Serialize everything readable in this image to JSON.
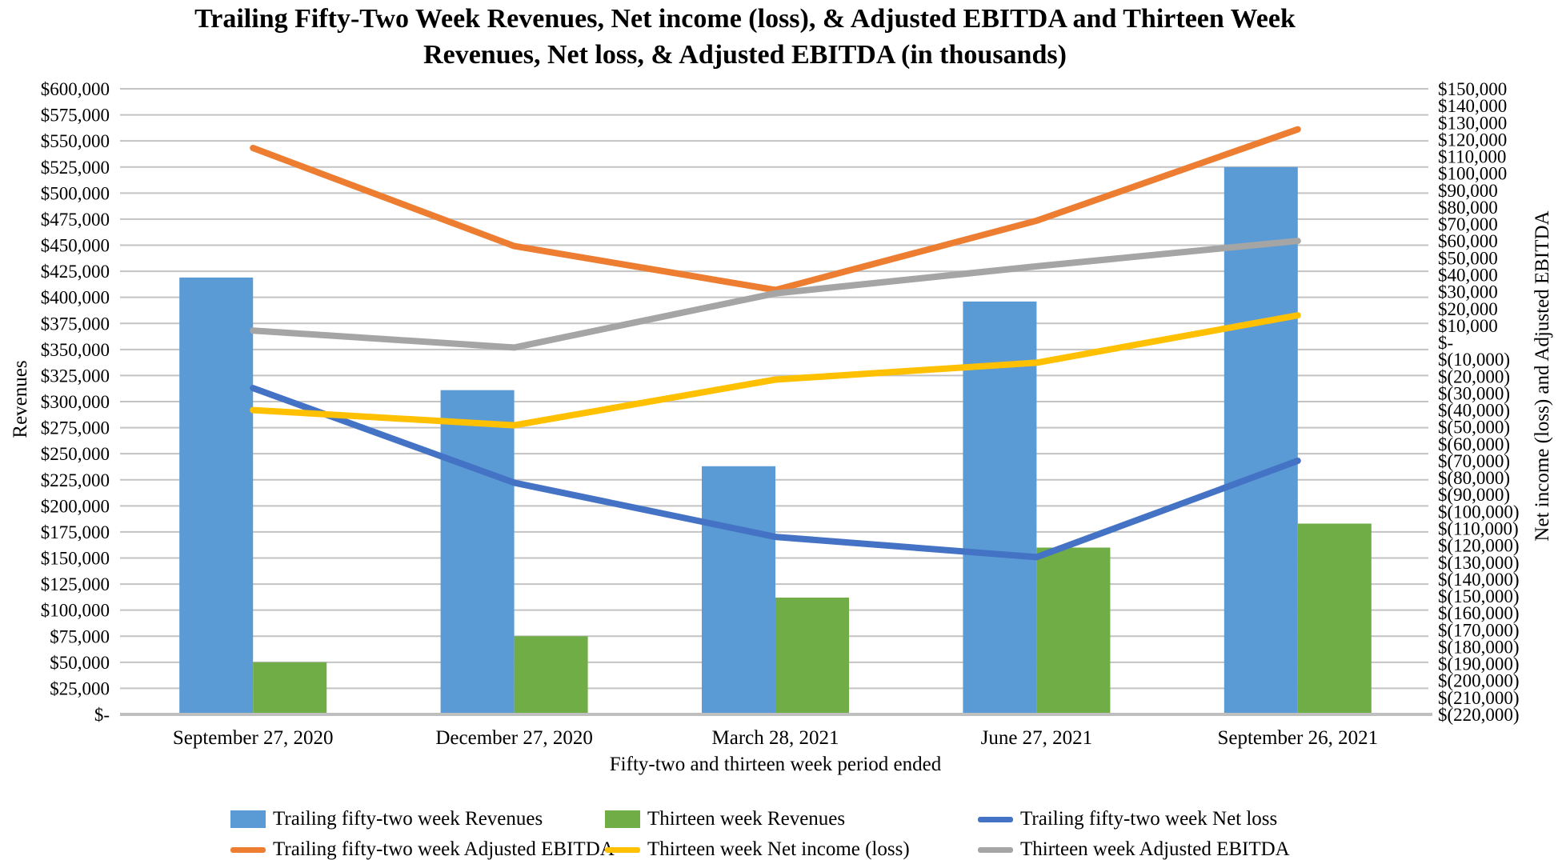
{
  "chart_data": {
    "type": "bar+line combo",
    "title_line1": "Trailing Fifty-Two Week Revenues, Net income (loss), & Adjusted EBITDA and Thirteen Week",
    "title_line2": "Revenues, Net loss, & Adjusted EBITDA (in thousands)",
    "grid": true,
    "legend_position": "bottom",
    "background_color": "#ffffff",
    "gridline_color": "#c3c3c3",
    "axis_line_color": "#bfbfbf",
    "categories": [
      "September 27, 2020",
      "December 27, 2020",
      "March 28, 2021",
      "June 27, 2021",
      "September 26, 2021"
    ],
    "axes": {
      "x": {
        "title": "Fifty-two and thirteen week period ended"
      },
      "left": {
        "title": "Revenues",
        "min": 0,
        "max": 600000,
        "step": 25000,
        "ticks": [
          "$600,000",
          "$575,000",
          "$550,000",
          "$525,000",
          "$500,000",
          "$475,000",
          "$450,000",
          "$425,000",
          "$400,000",
          "$375,000",
          "$350,000",
          "$325,000",
          "$300,000",
          "$275,000",
          "$250,000",
          "$225,000",
          "$200,000",
          "$175,000",
          "$150,000",
          "$125,000",
          "$100,000",
          "$75,000",
          "$50,000",
          "$25,000",
          "$-"
        ]
      },
      "right": {
        "title": "Net income (loss) and Adjusted EBITDA",
        "min": -220000,
        "max": 150000,
        "step": 10000,
        "ticks": [
          "$150,000",
          "$140,000",
          "$130,000",
          "$120,000",
          "$110,000",
          "$100,000",
          "$90,000",
          "$80,000",
          "$70,000",
          "$60,000",
          "$50,000",
          "$40,000",
          "$30,000",
          "$20,000",
          "$10,000",
          "$-",
          "$(10,000)",
          "$(20,000)",
          "$(30,000)",
          "$(40,000)",
          "$(50,000)",
          "$(60,000)",
          "$(70,000)",
          "$(80,000)",
          "$(90,000)",
          "$(100,000)",
          "$(110,000)",
          "$(120,000)",
          "$(130,000)",
          "$(140,000)",
          "$(150,000)",
          "$(160,000)",
          "$(170,000)",
          "$(180,000)",
          "$(190,000)",
          "$(200,000)",
          "$(210,000)",
          "$(220,000)"
        ]
      }
    },
    "series": [
      {
        "name": "Trailing fifty-two week Revenues",
        "type": "bar",
        "axis": "left",
        "color": "#5B9BD5",
        "values": [
          419000,
          311000,
          238000,
          396000,
          525000
        ]
      },
      {
        "name": "Thirteen week Revenues",
        "type": "bar",
        "axis": "left",
        "color": "#70AD47",
        "values": [
          50000,
          75000,
          112000,
          160000,
          183000
        ]
      },
      {
        "name": "Trailing fifty-two week Net loss",
        "type": "line",
        "axis": "right",
        "color": "#4472C4",
        "values": [
          -27000,
          -83000,
          -115000,
          -127000,
          -70000
        ]
      },
      {
        "name": "Trailing fifty-two week Adjusted EBITDA",
        "type": "line",
        "axis": "right",
        "color": "#ED7D31",
        "values": [
          115000,
          57000,
          31000,
          72000,
          126000
        ]
      },
      {
        "name": "Thirteen week Net income (loss)",
        "type": "line",
        "axis": "right",
        "color": "#FFC000",
        "values": [
          -40000,
          -49000,
          -22000,
          -12000,
          16000
        ]
      },
      {
        "name": "Thirteen week Adjusted EBITDA",
        "type": "line",
        "axis": "right",
        "color": "#A5A5A5",
        "values": [
          7000,
          -3000,
          29000,
          45000,
          60000
        ]
      }
    ],
    "legend_rows": [
      [
        "Trailing fifty-two week Revenues",
        "Thirteen week Revenues",
        "Trailing fifty-two week Net loss"
      ],
      [
        "Trailing fifty-two week Adjusted EBITDA",
        "Thirteen week Net income (loss)",
        "Thirteen week Adjusted EBITDA"
      ]
    ]
  }
}
